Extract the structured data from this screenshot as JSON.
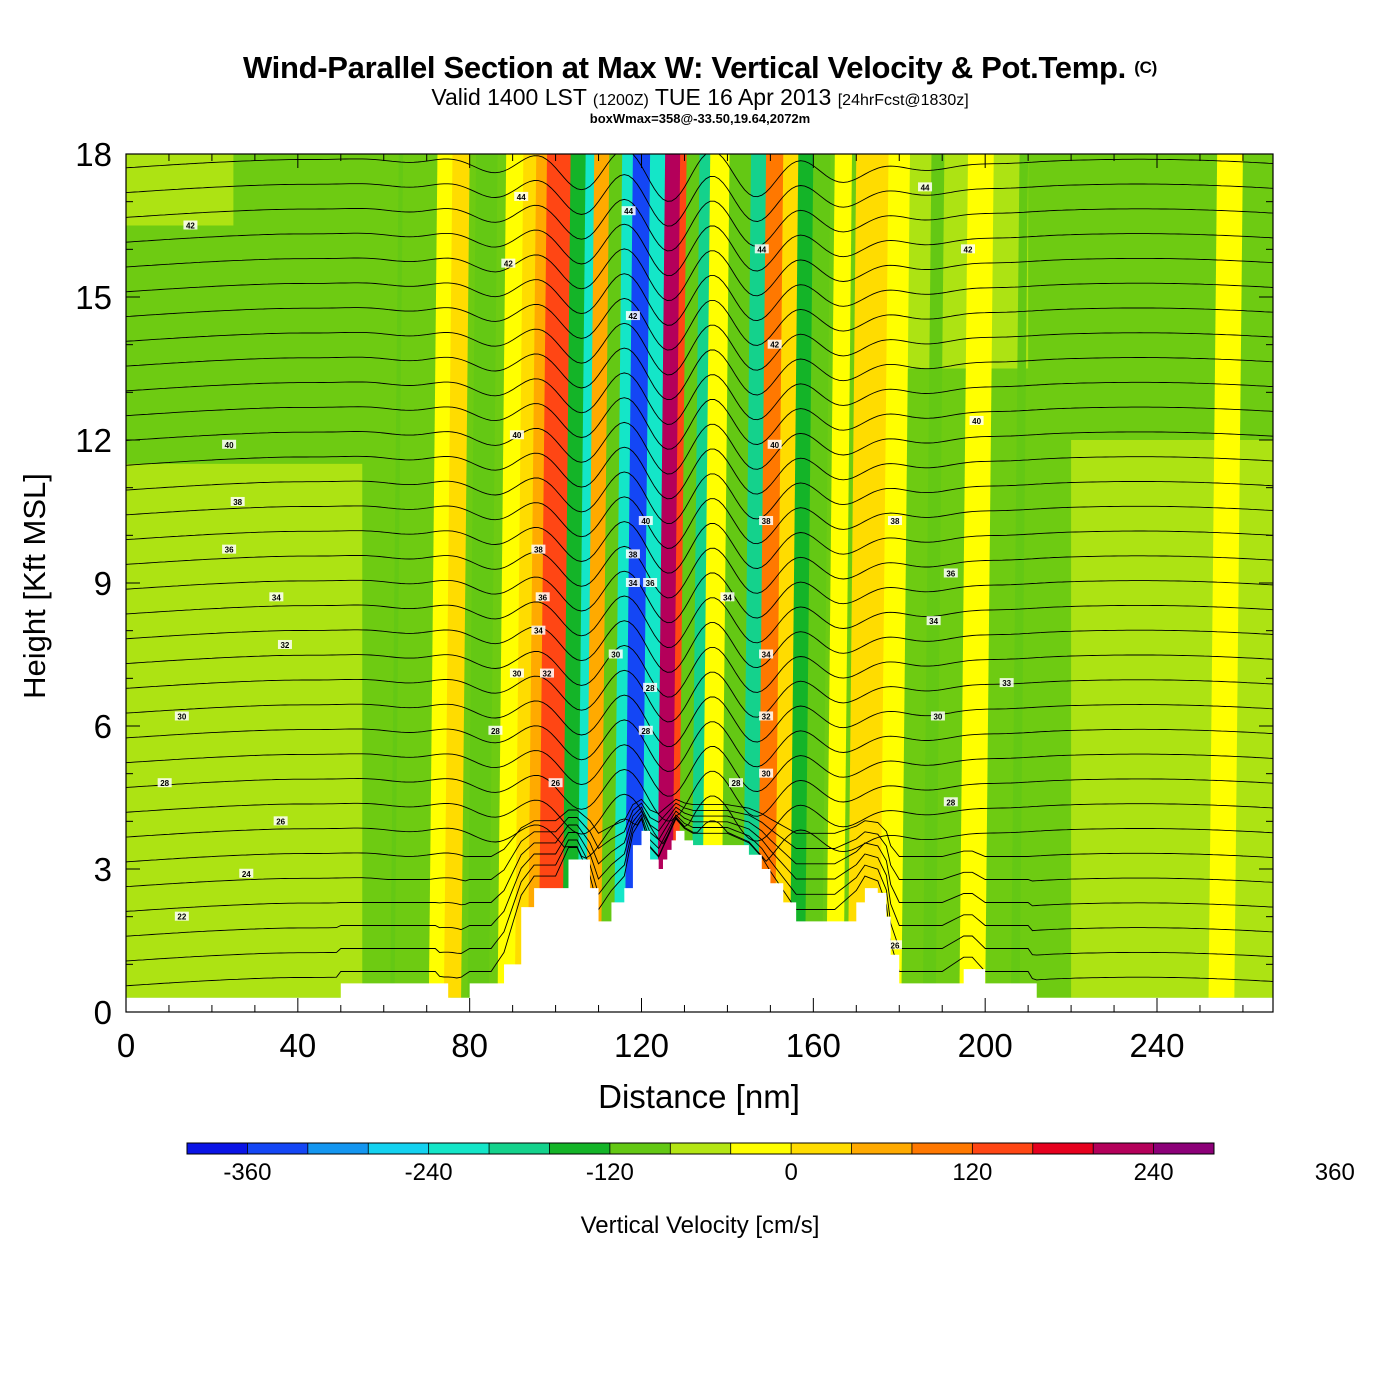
{
  "header": {
    "title": "Wind-Parallel Section at Max W: Vertical Velocity & Pot.Temp.",
    "copyright_mark": "(C)",
    "valid_prefix": "Valid 1400 LST",
    "valid_utc": "(1200Z)",
    "valid_date": "TUE 16 Apr 2013",
    "forecast_info": "[24hrFcst@1830z]",
    "box_info": "boxWmax=358@-33.50,19.64,2072m"
  },
  "colors": {
    "bands": [
      "#0a14e6",
      "#1446f5",
      "#1496f0",
      "#14d2f0",
      "#14e6c8",
      "#14d28c",
      "#14b428",
      "#64c814",
      "#b4e614",
      "#ffff00",
      "#ffdc00",
      "#ffaa00",
      "#ff7800",
      "#ff4614",
      "#e6001e",
      "#b4005a",
      "#8c0078"
    ],
    "background_field": "#6ecb12",
    "terrain": "#ffffff",
    "contour": "#000000"
  },
  "chart_data": {
    "type": "heatmap",
    "title": "Wind-Parallel Section at Max W: Vertical Velocity & Pot.Temp.",
    "xlabel": "Distance [nm]",
    "ylabel": "Height [Kft MSL]",
    "xlim": [
      0,
      267
    ],
    "ylim": [
      0,
      18
    ],
    "x_ticks": [
      0,
      40,
      80,
      120,
      160,
      200,
      240
    ],
    "y_ticks": [
      0,
      3,
      6,
      9,
      12,
      15,
      18
    ],
    "colorbar": {
      "label": "Vertical Velocity [cm/s]",
      "levels": [
        -400,
        -360,
        -320,
        -280,
        -240,
        -200,
        -160,
        -120,
        -80,
        -40,
        0,
        40,
        80,
        120,
        160,
        200,
        240,
        280,
        320,
        360,
        400
      ],
      "tick_labels": [
        -360,
        -240,
        -120,
        0,
        120,
        240,
        360
      ],
      "band_index": [
        0,
        0,
        1,
        2,
        3,
        4,
        5,
        6,
        7,
        7,
        8,
        9,
        10,
        11,
        12,
        13,
        14,
        15,
        16,
        16
      ]
    },
    "wave_bands": [
      {
        "x": 62,
        "w": 0.5,
        "value": -40
      },
      {
        "x": 73,
        "w": 2.5,
        "value": 40
      },
      {
        "x": 76,
        "w": 2.0,
        "value": 80
      },
      {
        "x": 82,
        "w": 2.5,
        "value": -40
      },
      {
        "x": 89,
        "w": 2.5,
        "value": 40
      },
      {
        "x": 93,
        "w": 2.5,
        "value": 80
      },
      {
        "x": 96,
        "w": 2.5,
        "value": 120
      },
      {
        "x": 99,
        "w": 3.0,
        "value": 200
      },
      {
        "x": 104,
        "w": 2.5,
        "value": -120
      },
      {
        "x": 107,
        "w": 2.0,
        "value": -200
      },
      {
        "x": 110,
        "w": 3.0,
        "value": 120
      },
      {
        "x": 113,
        "w": 2.5,
        "value": -80
      },
      {
        "x": 116,
        "w": 2.5,
        "value": -200
      },
      {
        "x": 119,
        "w": 3.0,
        "value": -300
      },
      {
        "x": 122,
        "w": 2.0,
        "value": -200
      },
      {
        "x": 126,
        "w": 2.5,
        "value": 300
      },
      {
        "x": 128.5,
        "w": 1.5,
        "value": 200
      },
      {
        "x": 131,
        "w": 2.5,
        "value": -80
      },
      {
        "x": 134,
        "w": 2.5,
        "value": -160
      },
      {
        "x": 137,
        "w": 3.0,
        "value": 40
      },
      {
        "x": 141,
        "w": 2.5,
        "value": -80
      },
      {
        "x": 146,
        "w": 2.5,
        "value": -160
      },
      {
        "x": 150,
        "w": 3.0,
        "value": 160
      },
      {
        "x": 153,
        "w": 2.0,
        "value": 80
      },
      {
        "x": 157,
        "w": 2.5,
        "value": -120
      },
      {
        "x": 160,
        "w": 2.0,
        "value": -80
      },
      {
        "x": 165,
        "w": 2.0,
        "value": 40
      },
      {
        "x": 172,
        "w": 4.0,
        "value": 80
      },
      {
        "x": 178,
        "w": 2.5,
        "value": 40
      },
      {
        "x": 187,
        "w": 1.5,
        "value": -80
      },
      {
        "x": 197,
        "w": 3.0,
        "value": 40
      },
      {
        "x": 207,
        "w": 1.0,
        "value": -40
      },
      {
        "x": 255,
        "w": 3.0,
        "value": 40
      }
    ],
    "broad_regions": [
      {
        "x0": 0,
        "x1": 55,
        "y0": 0.3,
        "y1": 11.5,
        "value": 20
      },
      {
        "x0": 220,
        "x1": 267,
        "y0": 0.3,
        "y1": 12.0,
        "value": 20
      },
      {
        "x0": 0,
        "x1": 25,
        "y0": 16.5,
        "y1": 18,
        "value": 20
      },
      {
        "x0": 178,
        "x1": 210,
        "y0": 13.5,
        "y1": 18,
        "value": 20
      }
    ],
    "terrain_kft": {
      "x": [
        0,
        12,
        20,
        30,
        40,
        49,
        50,
        55,
        60,
        65,
        70,
        72,
        75,
        80,
        82,
        85,
        88,
        92,
        95,
        100,
        103,
        105,
        108,
        110,
        113,
        116,
        118,
        120,
        122,
        124,
        125,
        126,
        127,
        128,
        130,
        132,
        135,
        140,
        145,
        148,
        150,
        153,
        156,
        160,
        165,
        170,
        172,
        175,
        177,
        178,
        180,
        185,
        190,
        195,
        197,
        200,
        205,
        210,
        212,
        220,
        230,
        240,
        250,
        260,
        267
      ],
      "y": [
        0.3,
        0.3,
        0.3,
        0.3,
        0.3,
        0.3,
        0.6,
        0.6,
        0.6,
        0.6,
        0.6,
        0.6,
        0.3,
        0.6,
        0.6,
        0.6,
        1.0,
        2.2,
        2.6,
        2.6,
        3.2,
        3.2,
        2.6,
        1.9,
        2.3,
        2.6,
        3.5,
        3.8,
        3.2,
        3.0,
        3.2,
        3.4,
        3.6,
        3.8,
        3.6,
        3.5,
        3.5,
        3.5,
        3.3,
        3.0,
        2.7,
        2.3,
        1.9,
        1.9,
        1.9,
        2.3,
        2.6,
        2.5,
        2.0,
        1.2,
        0.6,
        0.6,
        0.6,
        0.9,
        0.9,
        0.6,
        0.6,
        0.6,
        0.3,
        0.3,
        0.3,
        0.3,
        0.3,
        0.3,
        0.3
      ]
    },
    "pot_temp_levels": {
      "start_K_label": 22,
      "end_K_label": 44,
      "step": 1,
      "labeled": [
        22,
        24,
        26,
        28,
        30,
        32,
        34,
        36,
        38,
        40,
        42,
        44
      ]
    },
    "pot_temp_labels": [
      {
        "text": "22",
        "x": 13,
        "y": 2.0
      },
      {
        "text": "24",
        "x": 28,
        "y": 2.9
      },
      {
        "text": "26",
        "x": 36,
        "y": 4.0
      },
      {
        "text": "28",
        "x": 9,
        "y": 4.8
      },
      {
        "text": "30",
        "x": 13,
        "y": 6.2
      },
      {
        "text": "32",
        "x": 37,
        "y": 7.7
      },
      {
        "text": "34",
        "x": 35,
        "y": 8.7
      },
      {
        "text": "36",
        "x": 24,
        "y": 9.7
      },
      {
        "text": "38",
        "x": 26,
        "y": 10.7
      },
      {
        "text": "40",
        "x": 24,
        "y": 11.9
      },
      {
        "text": "42",
        "x": 15,
        "y": 16.5
      },
      {
        "text": "42",
        "x": 89,
        "y": 15.7
      },
      {
        "text": "44",
        "x": 92,
        "y": 17.1
      },
      {
        "text": "40",
        "x": 91,
        "y": 12.1
      },
      {
        "text": "38",
        "x": 96,
        "y": 9.7
      },
      {
        "text": "36",
        "x": 97,
        "y": 8.7
      },
      {
        "text": "34",
        "x": 96,
        "y": 8.0
      },
      {
        "text": "32",
        "x": 98,
        "y": 7.1
      },
      {
        "text": "30",
        "x": 91,
        "y": 7.1
      },
      {
        "text": "28",
        "x": 86,
        "y": 5.9
      },
      {
        "text": "26",
        "x": 100,
        "y": 4.8
      },
      {
        "text": "44",
        "x": 117,
        "y": 16.8
      },
      {
        "text": "42",
        "x": 118,
        "y": 14.6
      },
      {
        "text": "40",
        "x": 121,
        "y": 10.3
      },
      {
        "text": "38",
        "x": 118,
        "y": 9.6
      },
      {
        "text": "34",
        "x": 118,
        "y": 9.0
      },
      {
        "text": "36",
        "x": 122,
        "y": 9.0
      },
      {
        "text": "30",
        "x": 114,
        "y": 7.5
      },
      {
        "text": "28",
        "x": 122,
        "y": 6.8
      },
      {
        "text": "28",
        "x": 121,
        "y": 5.9
      },
      {
        "text": "44",
        "x": 148,
        "y": 16.0
      },
      {
        "text": "42",
        "x": 151,
        "y": 14.0
      },
      {
        "text": "40",
        "x": 151,
        "y": 11.9
      },
      {
        "text": "38",
        "x": 149,
        "y": 10.3
      },
      {
        "text": "34",
        "x": 140,
        "y": 8.7
      },
      {
        "text": "34",
        "x": 149,
        "y": 7.5
      },
      {
        "text": "32",
        "x": 149,
        "y": 6.2
      },
      {
        "text": "30",
        "x": 149,
        "y": 5.0
      },
      {
        "text": "28",
        "x": 142,
        "y": 4.8
      },
      {
        "text": "44",
        "x": 186,
        "y": 17.3
      },
      {
        "text": "42",
        "x": 196,
        "y": 16.0
      },
      {
        "text": "40",
        "x": 198,
        "y": 12.4
      },
      {
        "text": "38",
        "x": 179,
        "y": 10.3
      },
      {
        "text": "36",
        "x": 192,
        "y": 9.2
      },
      {
        "text": "34",
        "x": 188,
        "y": 8.2
      },
      {
        "text": "33",
        "x": 205,
        "y": 6.9
      },
      {
        "text": "30",
        "x": 189,
        "y": 6.2
      },
      {
        "text": "28",
        "x": 192,
        "y": 4.4
      },
      {
        "text": "26",
        "x": 179,
        "y": 1.4
      }
    ]
  }
}
